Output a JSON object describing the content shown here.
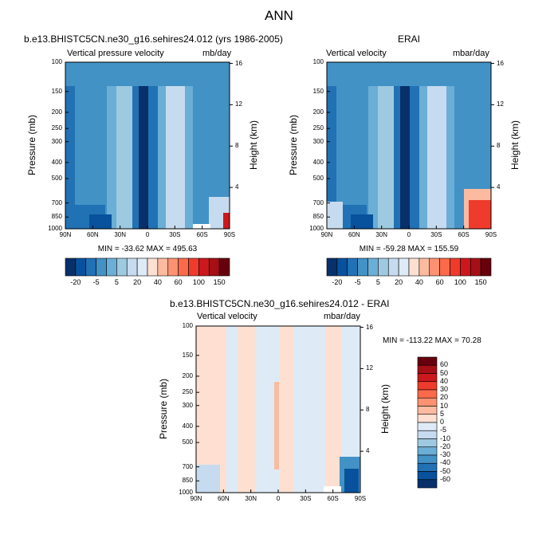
{
  "page": {
    "title": "ANN"
  },
  "colors": {
    "blues": [
      "#08306b",
      "#08519c",
      "#2171b5",
      "#4292c6",
      "#6baed6",
      "#9ecae1",
      "#c6dbef",
      "#deebf7"
    ],
    "reds": [
      "#fee0d2",
      "#fcbba1",
      "#fc9272",
      "#fb6a4a",
      "#ef3b2c",
      "#cb181d",
      "#a50f15",
      "#67000d"
    ],
    "panel_bg": "#4a86e8"
  },
  "chart_data": [
    {
      "type": "heatmap",
      "panel": "top-left",
      "title": "b.e13.BHISTC5CN.ne30_g16.sehires24.012 (yrs 1986-2005)",
      "left_label": "Vertical pressure velocity",
      "right_label": "mb/day",
      "ylabel": "Pressure (mb)",
      "y2label": "Height (km)",
      "x_ticks": [
        "90N",
        "60N",
        "30N",
        "0",
        "30S",
        "60S",
        "90S"
      ],
      "y_ticks": [
        "100",
        "150",
        "200",
        "250",
        "300",
        "400",
        "500",
        "700",
        "850",
        "1000"
      ],
      "y_tick_values": [
        100,
        150,
        200,
        250,
        300,
        400,
        500,
        700,
        850,
        1000
      ],
      "ylim": [
        100,
        1000
      ],
      "y2_ticks": [
        "16",
        "12",
        "8",
        "4"
      ],
      "y2_tick_values": [
        16,
        12,
        8,
        4
      ],
      "min_max_text": "MIN = -33.62   MAX = 495.63",
      "min": -33.62,
      "max": 495.63
    },
    {
      "type": "heatmap",
      "panel": "top-right",
      "title": "ERAI",
      "left_label": "Vertical velocity",
      "right_label": "mbar/day",
      "ylabel": "Pressure (mb)",
      "y2label": "Height (km)",
      "x_ticks": [
        "90N",
        "60N",
        "30N",
        "0",
        "30S",
        "60S",
        "90S"
      ],
      "y_ticks": [
        "100",
        "150",
        "200",
        "250",
        "300",
        "400",
        "500",
        "700",
        "850",
        "1000"
      ],
      "y_tick_values": [
        100,
        150,
        200,
        250,
        300,
        400,
        500,
        700,
        850,
        1000
      ],
      "ylim": [
        100,
        1000
      ],
      "y2_ticks": [
        "16",
        "12",
        "8",
        "4"
      ],
      "y2_tick_values": [
        16,
        12,
        8,
        4
      ],
      "min_max_text": "MIN = -59.28   MAX = 155.59",
      "min": -59.28,
      "max": 155.59
    },
    {
      "type": "heatmap",
      "panel": "bottom",
      "title": "b.e13.BHISTC5CN.ne30_g16.sehires24.012 - ERAI",
      "left_label": "Vertical velocity",
      "right_label": "mbar/day",
      "ylabel": "Pressure (mb)",
      "y2label": "Height (km)",
      "x_ticks": [
        "90N",
        "60N",
        "30N",
        "0",
        "30S",
        "60S",
        "90S"
      ],
      "y_ticks": [
        "100",
        "150",
        "200",
        "250",
        "300",
        "400",
        "500",
        "700",
        "850",
        "1000"
      ],
      "y_tick_values": [
        100,
        150,
        200,
        250,
        300,
        400,
        500,
        700,
        850,
        1000
      ],
      "ylim": [
        100,
        1000
      ],
      "y2_ticks": [
        "16",
        "12",
        "8",
        "4"
      ],
      "y2_tick_values": [
        16,
        12,
        8,
        4
      ],
      "min_max_text": "MIN = -113.22   MAX =  70.28",
      "min": -113.22,
      "max": 70.28
    }
  ],
  "colorbars": {
    "top": {
      "labels": [
        "-20",
        "-5",
        "5",
        "20",
        "40",
        "60",
        "100",
        "150"
      ],
      "bins": 16
    },
    "bottom": {
      "labels": [
        "60",
        "50",
        "40",
        "30",
        "20",
        "10",
        "5",
        "0",
        "-5",
        "-10",
        "-20",
        "-30",
        "-40",
        "-50",
        "-60"
      ]
    }
  }
}
